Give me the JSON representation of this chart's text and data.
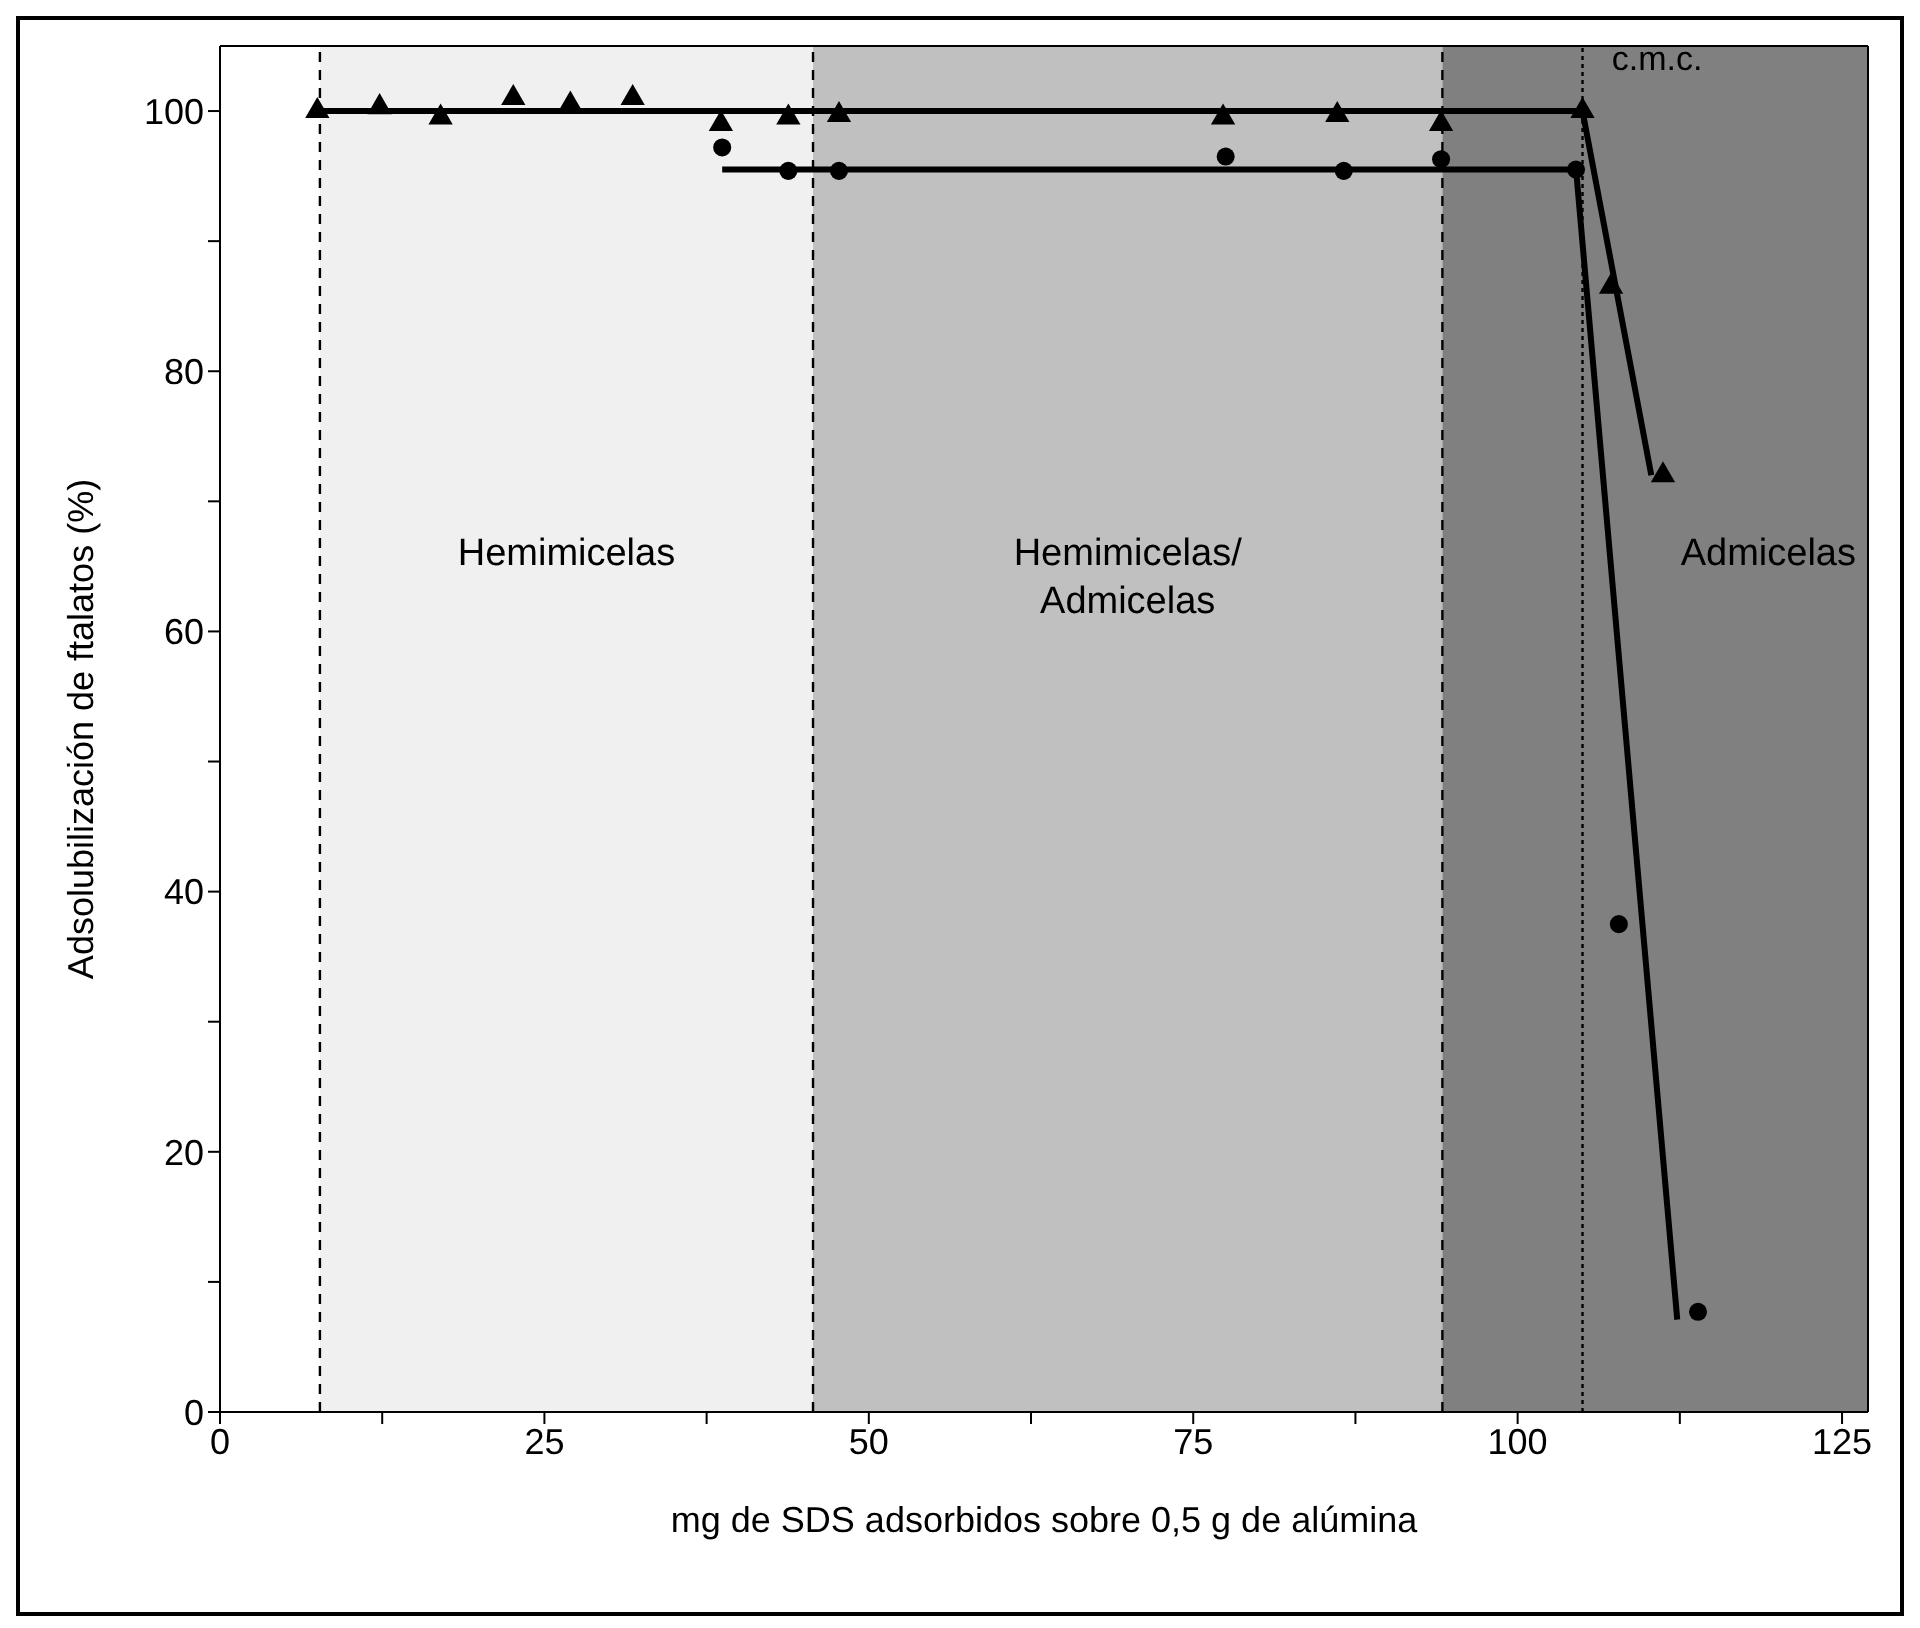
{
  "chart_data": {
    "type": "scatter",
    "xlabel": "mg de SDS adsorbidos sobre 0,5 g de alúmina",
    "ylabel": "Adsolubilización de ftalatos (%)",
    "xlim": [
      0,
      127
    ],
    "xticks": [
      0,
      {
        "value": 12.5,
        "label": null
      },
      25,
      {
        "value": 37.5,
        "label": null
      },
      50,
      {
        "value": 62.5,
        "label": null
      },
      75,
      {
        "value": 87.5,
        "label": null
      },
      100,
      {
        "value": 112.5,
        "label": null
      },
      125
    ],
    "ylim": [
      0,
      105
    ],
    "yticks": [
      0,
      {
        "value": 10,
        "label": null
      },
      20,
      {
        "value": 30,
        "label": null
      },
      40,
      {
        "value": 50,
        "label": null
      },
      60,
      {
        "value": 70,
        "label": null
      },
      80,
      {
        "value": 90,
        "label": null
      },
      100
    ],
    "bands": [
      {
        "axis": "x",
        "from": 7.7,
        "to": 45.7,
        "label": "Hemimicelas",
        "color": "#f0f0f0"
      },
      {
        "axis": "x",
        "from": 45.7,
        "to": 94.2,
        "label": "Hemimicelas/ Admicelas",
        "color": "#c0c0c0"
      },
      {
        "axis": "x",
        "from": 94.2,
        "to": 127,
        "label": "Admicelas",
        "color": "#808080"
      }
    ],
    "ref_lines": [
      {
        "axis": "x",
        "value": 7.7,
        "line_style": "dashed"
      },
      {
        "axis": "x",
        "value": 45.7,
        "line_style": "dashed"
      },
      {
        "axis": "x",
        "value": 94.2,
        "line_style": "dashed"
      },
      {
        "axis": "x",
        "value": 105,
        "label": "c.m.c.",
        "line_style": "dotted"
      }
    ],
    "series": [
      {
        "marker": "triangle",
        "color": "#000000",
        "x": [
          7.5,
          12.3,
          17,
          22.6,
          27,
          31.8,
          38.6,
          43.8,
          47.7,
          77.3,
          86.1,
          94.1,
          105,
          107.2,
          111.2
        ],
        "values": [
          100,
          100.3,
          99.5,
          101,
          100.5,
          101,
          99,
          99.5,
          99.7,
          99.5,
          99.7,
          99,
          100,
          86.5,
          72
        ]
      },
      {
        "marker": "circle",
        "color": "#000000",
        "x": [
          38.7,
          43.8,
          47.7,
          77.5,
          86.6,
          94.1,
          104.5,
          107.8,
          113.9
        ],
        "values": [
          97.2,
          95.4,
          95.4,
          96.5,
          95.4,
          96.3,
          95.5,
          37.5,
          7.7
        ]
      },
      {
        "type": "line",
        "color": "#000000",
        "x": [
          7.5,
          105,
          110.3
        ],
        "values": [
          100,
          100,
          72
        ]
      },
      {
        "type": "line",
        "color": "#000000",
        "x": [
          38.7,
          104.5,
          112.3
        ],
        "values": [
          95.5,
          95.5,
          7.1
        ]
      }
    ]
  }
}
